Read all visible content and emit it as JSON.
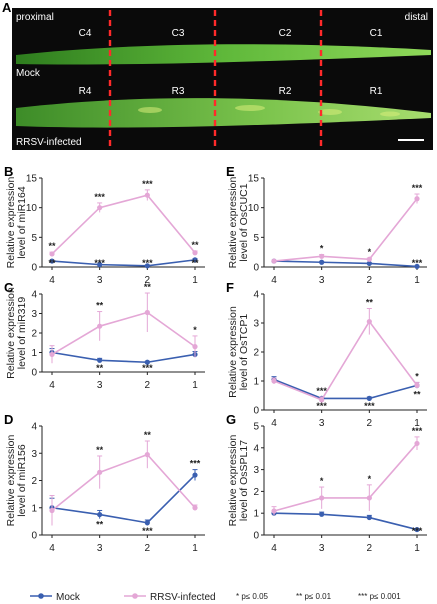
{
  "panel_a": {
    "letter": "A",
    "proximal": "proximal",
    "distal": "distal",
    "mock": "Mock",
    "infected": "RRSV-infected",
    "top_labels": [
      "C4",
      "C3",
      "C2",
      "C1"
    ],
    "bottom_labels": [
      "R4",
      "R3",
      "R2",
      "R1"
    ]
  },
  "legend": {
    "mock": "Mock",
    "infected": "RRSV-infected",
    "sig1": "* p≤ 0.05",
    "sig2": "** p≤ 0.01",
    "sig3": "*** p≤ 0.001"
  },
  "colors": {
    "mock": "#3a5fb0",
    "infected": "#e4a7d6"
  },
  "chart_data": [
    {
      "panel": "B",
      "type": "line",
      "ylabel_1": "Relative expression",
      "ylabel_2": "level of miR164",
      "x": [
        "4",
        "3",
        "2",
        "1"
      ],
      "ylim": [
        0,
        15
      ],
      "yticks": [
        0,
        5,
        10,
        15
      ],
      "series": [
        {
          "name": "Mock",
          "values": [
            1.0,
            0.4,
            0.2,
            1.2
          ],
          "err": [
            0.1,
            0.1,
            0.1,
            0.2
          ]
        },
        {
          "name": "RRSV-infected",
          "values": [
            2.2,
            10.0,
            12.1,
            2.4
          ],
          "err": [
            0.3,
            0.8,
            0.9,
            0.3
          ]
        }
      ],
      "stars_top": [
        "**",
        "***",
        "***",
        "**"
      ],
      "stars_bottom": [
        "**",
        "***",
        "***",
        "**"
      ]
    },
    {
      "panel": "C",
      "type": "line",
      "ylabel_1": "Relative expression",
      "ylabel_2": "level of miR319",
      "x": [
        "4",
        "3",
        "2",
        "1"
      ],
      "ylim": [
        0,
        4
      ],
      "yticks": [
        0,
        1,
        2,
        3,
        4
      ],
      "series": [
        {
          "name": "Mock",
          "values": [
            1.0,
            0.6,
            0.5,
            0.9
          ],
          "err": [
            0.2,
            0.1,
            0.05,
            0.15
          ]
        },
        {
          "name": "RRSV-infected",
          "values": [
            0.9,
            2.35,
            3.05,
            1.3
          ],
          "err": [
            0.45,
            0.75,
            1.0,
            0.55
          ]
        }
      ],
      "stars_top": [
        "",
        "**",
        "**",
        "*"
      ],
      "stars_bottom": [
        "",
        "**",
        "***",
        ""
      ]
    },
    {
      "panel": "D",
      "type": "line",
      "ylabel_1": "Relative expression",
      "ylabel_2": "level of miR156",
      "x": [
        "4",
        "3",
        "2",
        "1"
      ],
      "ylim": [
        0,
        4
      ],
      "yticks": [
        0,
        1,
        2,
        3,
        4
      ],
      "series": [
        {
          "name": "Mock",
          "values": [
            1.0,
            0.75,
            0.45,
            2.2
          ],
          "err": [
            0.35,
            0.15,
            0.1,
            0.2
          ]
        },
        {
          "name": "RRSV-infected",
          "values": [
            0.9,
            2.3,
            2.95,
            1.0
          ],
          "err": [
            0.55,
            0.6,
            0.5,
            0.1
          ]
        }
      ],
      "stars_top": [
        "",
        "**",
        "**",
        "***"
      ],
      "stars_bottom": [
        "",
        "**",
        "***",
        ""
      ]
    },
    {
      "panel": "E",
      "type": "line",
      "ylabel_1": "Relative expression",
      "ylabel_2": "level of OsCUC1",
      "x": [
        "4",
        "3",
        "2",
        "1"
      ],
      "ylim": [
        0,
        15
      ],
      "yticks": [
        0,
        5,
        10,
        15
      ],
      "series": [
        {
          "name": "Mock",
          "values": [
            1.0,
            0.8,
            0.6,
            0.1
          ],
          "err": [
            0.1,
            0.1,
            0.1,
            0.05
          ]
        },
        {
          "name": "RRSV-infected",
          "values": [
            1.0,
            1.8,
            1.3,
            11.5
          ],
          "err": [
            0.1,
            0.3,
            0.2,
            0.8
          ]
        }
      ],
      "stars_top": [
        "",
        "*",
        "*",
        "***"
      ],
      "stars_bottom": [
        "",
        "",
        "",
        "***"
      ]
    },
    {
      "panel": "F",
      "type": "line",
      "ylabel_1": "Relative expression",
      "ylabel_2": "level of OsTCP1",
      "x": [
        "4",
        "3",
        "2",
        "1"
      ],
      "ylim": [
        0,
        4
      ],
      "yticks": [
        0,
        1,
        2,
        3,
        4
      ],
      "series": [
        {
          "name": "Mock",
          "values": [
            1.05,
            0.4,
            0.4,
            0.85
          ],
          "err": [
            0.1,
            0.05,
            0.05,
            0.1
          ]
        },
        {
          "name": "RRSV-infected",
          "values": [
            1.0,
            0.35,
            3.05,
            0.85
          ],
          "err": [
            0.1,
            0.1,
            0.45,
            0.1
          ]
        }
      ],
      "stars_top": [
        "",
        "***",
        "**",
        "*"
      ],
      "stars_bottom": [
        "",
        "***",
        "***",
        "**"
      ]
    },
    {
      "panel": "G",
      "type": "line",
      "ylabel_1": "Relative expression",
      "ylabel_2": "level of OsSPL17",
      "x": [
        "4",
        "3",
        "2",
        "1"
      ],
      "ylim": [
        0,
        5
      ],
      "yticks": [
        0,
        1,
        2,
        3,
        4,
        5
      ],
      "series": [
        {
          "name": "Mock",
          "values": [
            1.0,
            0.95,
            0.8,
            0.25
          ],
          "err": [
            0.1,
            0.1,
            0.1,
            0.05
          ]
        },
        {
          "name": "RRSV-infected",
          "values": [
            1.1,
            1.7,
            1.7,
            4.2
          ],
          "err": [
            0.2,
            0.5,
            0.6,
            0.3
          ]
        }
      ],
      "stars_top": [
        "",
        "*",
        "*",
        "***"
      ],
      "stars_bottom": [
        "",
        "",
        "",
        "***"
      ]
    }
  ]
}
